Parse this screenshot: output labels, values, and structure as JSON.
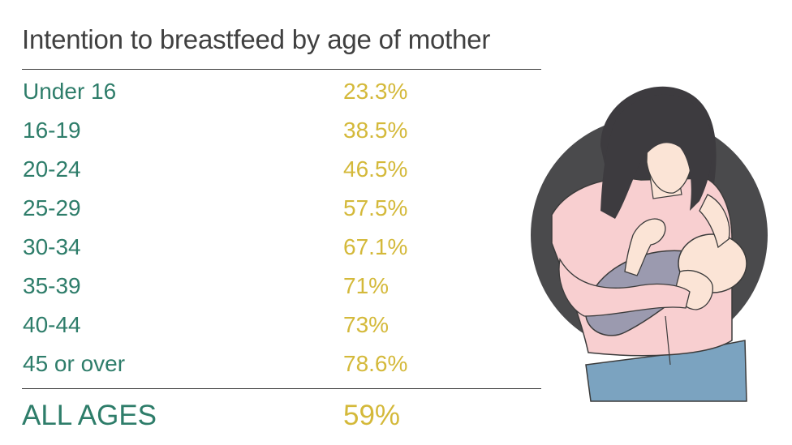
{
  "chart_data": {
    "type": "table",
    "title": "Intention to breastfeed by age of mother",
    "categories": [
      "Under 16",
      "16-19",
      "20-24",
      "25-29",
      "30-34",
      "35-39",
      "40-44",
      "45 or over"
    ],
    "values": [
      "23.3%",
      "38.5%",
      "46.5%",
      "57.5%",
      "67.1%",
      "71%",
      "73%",
      "78.6%"
    ],
    "numeric_values": [
      23.3,
      38.5,
      46.5,
      57.5,
      67.1,
      71,
      73,
      78.6
    ],
    "total": {
      "label": "ALL AGES",
      "value": "59%"
    }
  },
  "colors": {
    "category_text": "#2e7d6a",
    "value_text": "#d4b93a",
    "title_text": "#404040",
    "rule": "#3a3a3a",
    "illustration_circle": "#4a4a4c",
    "illustration_hair": "#3d3b3f",
    "illustration_skin": "#fbe4d6",
    "illustration_shirt": "#f8cfd0",
    "illustration_blanket": "#9b9aaf",
    "illustration_jeans": "#7ba3c0"
  },
  "illustration": {
    "icon": "breastfeeding-mother-illustration"
  }
}
